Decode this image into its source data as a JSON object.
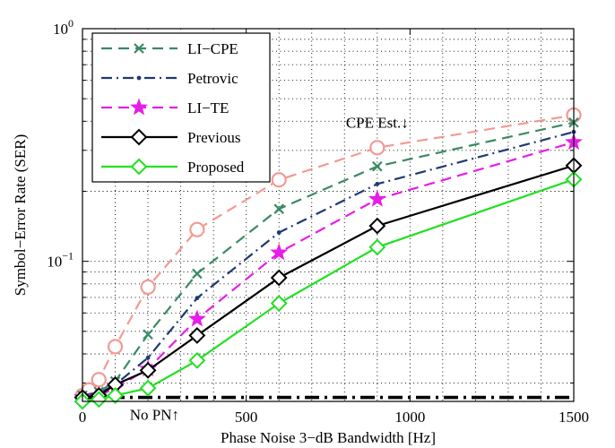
{
  "chart_data": {
    "type": "line",
    "xlabel": "Phase Noise 3−dB Bandwidth [Hz]",
    "ylabel": "Symbol−Error Rate (SER)",
    "xlim": [
      0,
      1500
    ],
    "ylim": [
      0.025,
      1
    ],
    "yscale": "log",
    "grid": true,
    "legend_position": "top-left",
    "x_ticks": [
      0,
      500,
      1000,
      1500
    ],
    "x_tick_labels": [
      "0",
      "500",
      "1000",
      "1500"
    ],
    "y_ticks": [
      0.1,
      1
    ],
    "y_tick_labels": [
      {
        "base": "10",
        "exp": "−1"
      },
      {
        "base": "10",
        "exp": "0"
      }
    ],
    "series": [
      {
        "name": "LI−CPE",
        "color": "#3a8a63",
        "dash": "dashed",
        "marker": "x",
        "x": [
          0,
          50,
          100,
          200,
          350,
          600,
          900,
          1500
        ],
        "y": [
          0.0265,
          0.0275,
          0.0305,
          0.0485,
          0.0885,
          0.168,
          0.256,
          0.395
        ]
      },
      {
        "name": "Petrovic",
        "color": "#1f3a70",
        "dash": "dashdot",
        "marker": "dot",
        "x": [
          0,
          50,
          100,
          200,
          350,
          600,
          900,
          1500
        ],
        "y": [
          0.0265,
          0.027,
          0.0295,
          0.0385,
          0.0695,
          0.133,
          0.215,
          0.36
        ]
      },
      {
        "name": "LI−TE",
        "color": "#e61ee6",
        "dash": "dashed",
        "marker": "star",
        "x": [
          0,
          50,
          100,
          200,
          350,
          600,
          900,
          1500
        ],
        "y": [
          0.026,
          0.0265,
          0.0285,
          0.0345,
          0.0565,
          0.109,
          0.185,
          0.325
        ]
      },
      {
        "name": "Previous",
        "color": "#000000",
        "dash": "solid",
        "marker": "diamond",
        "x": [
          0,
          50,
          100,
          200,
          350,
          600,
          900,
          1500
        ],
        "y": [
          0.026,
          0.0265,
          0.0295,
          0.034,
          0.048,
          0.085,
          0.142,
          0.258
        ]
      },
      {
        "name": "Proposed",
        "color": "#22e022",
        "dash": "solid",
        "marker": "diamond",
        "x": [
          0,
          50,
          100,
          200,
          350,
          600,
          900,
          1500
        ],
        "y": [
          0.025,
          0.0255,
          0.0265,
          0.0285,
          0.0375,
          0.066,
          0.115,
          0.225
        ]
      },
      {
        "name": "CPE Est.",
        "color": "#f29a94",
        "dash": "dashed",
        "marker": "circle",
        "in_legend": false,
        "x": [
          0,
          20,
          50,
          100,
          200,
          350,
          600,
          900,
          1500
        ],
        "y": [
          0.0265,
          0.028,
          0.031,
          0.043,
          0.0775,
          0.137,
          0.224,
          0.308,
          0.425
        ]
      },
      {
        "name": "No PN",
        "color": "#000000",
        "dash": "dashdot-thick",
        "marker": "none",
        "in_legend": false,
        "x": [
          0,
          1500
        ],
        "y": [
          0.026,
          0.026
        ]
      }
    ],
    "annotations": [
      {
        "text": "CPE Est.↓",
        "x": 900,
        "y": 0.375
      },
      {
        "text": "No PN↑",
        "x": 220,
        "y": 0.0208
      }
    ]
  }
}
